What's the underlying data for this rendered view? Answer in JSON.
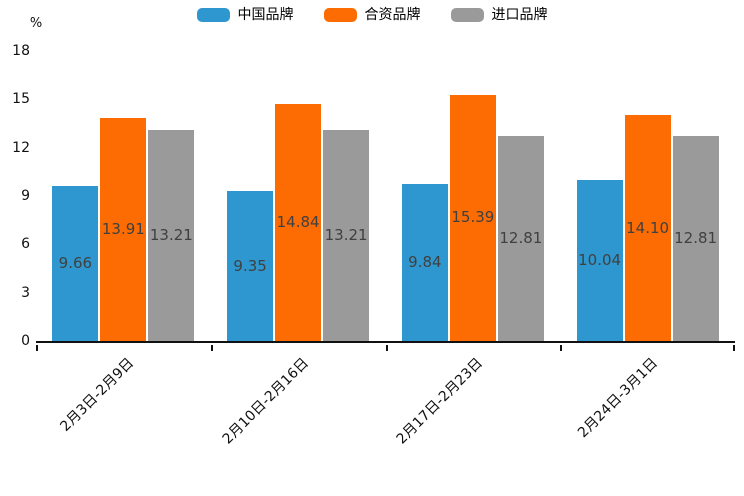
{
  "chart_data": {
    "type": "bar",
    "title": "",
    "unit_label": "%",
    "categories": [
      "2月3日-2月9日",
      "2月10日-2月16日",
      "2月17日-2月23日",
      "2月24日-3月1日"
    ],
    "series": [
      {
        "name": "中国品牌",
        "color": "#2E97CF",
        "values": [
          9.66,
          9.35,
          9.84,
          10.04
        ]
      },
      {
        "name": "合资品牌",
        "color": "#FD6C02",
        "values": [
          13.91,
          14.84,
          15.39,
          14.1
        ]
      },
      {
        "name": "进口品牌",
        "color": "#9A9A9A",
        "values": [
          13.21,
          13.21,
          12.81,
          12.81
        ]
      }
    ],
    "ylim": [
      0,
      18
    ],
    "yticks": [
      0,
      3,
      6,
      9,
      12,
      15,
      18
    ],
    "legend_position": "top-center",
    "grid": false,
    "value_labels": true,
    "value_label_decimals": 2
  },
  "colors": {
    "axis": "#111111",
    "value_label_text": "#404040",
    "tick_label_text": "#111111"
  }
}
